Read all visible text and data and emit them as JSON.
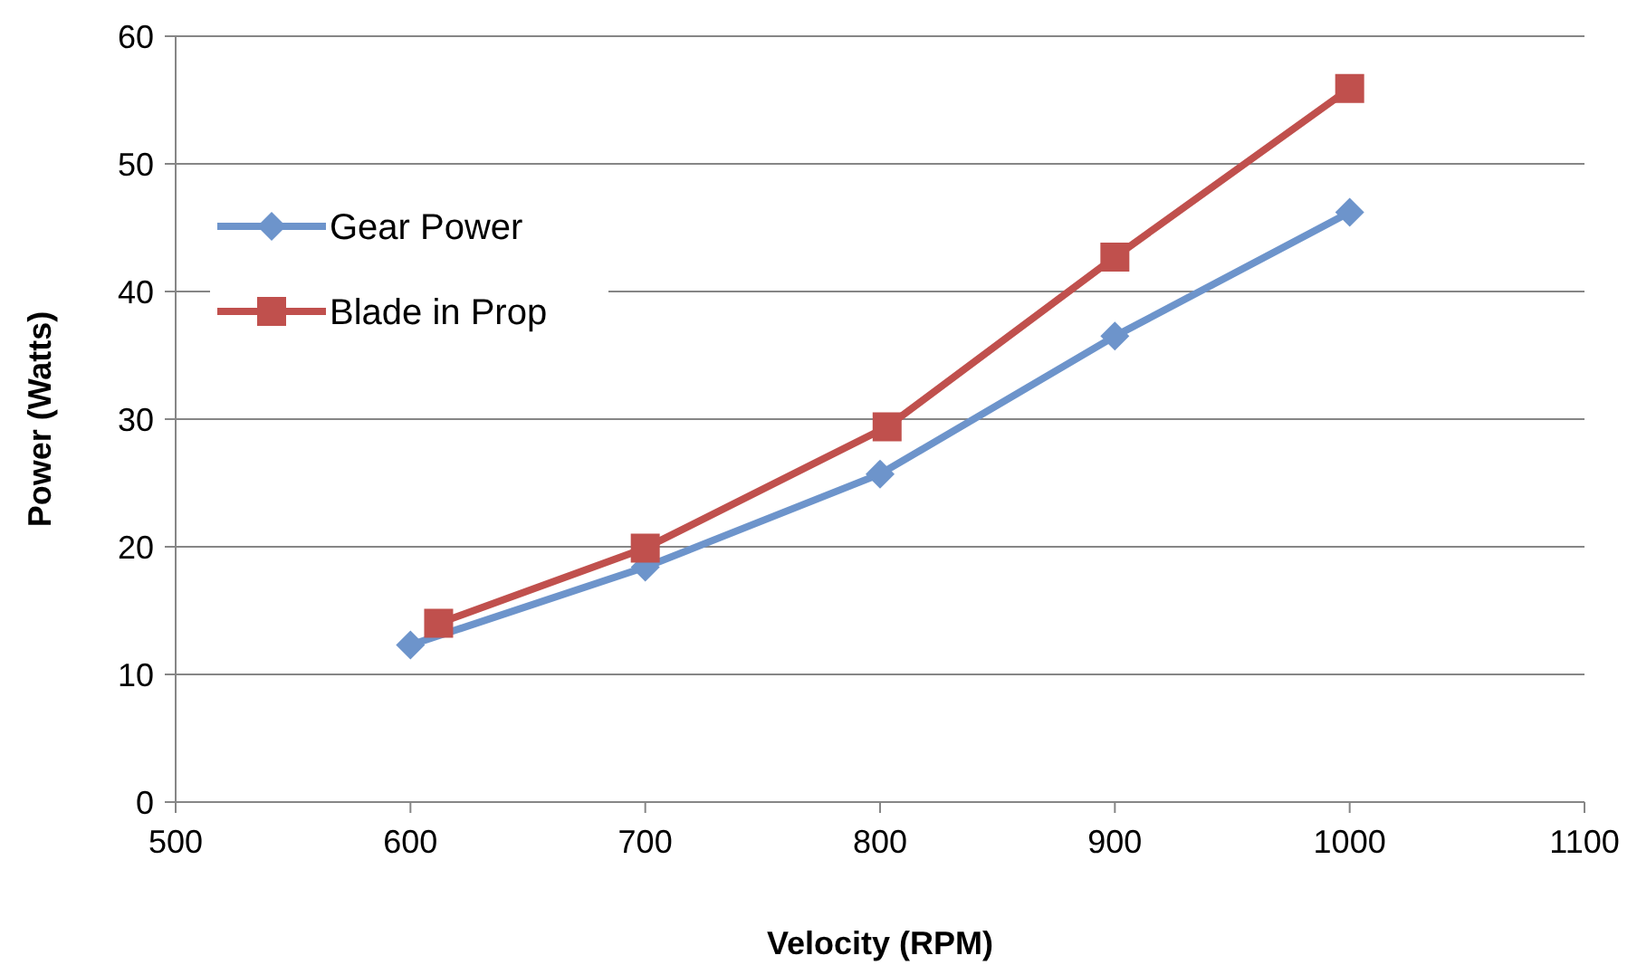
{
  "chart_data": {
    "type": "line",
    "xlabel": "Velocity (RPM)",
    "ylabel": "Power (Watts)",
    "xlim": [
      500,
      1100
    ],
    "xticks": [
      500,
      600,
      700,
      800,
      900,
      1000,
      1100
    ],
    "ylim": [
      0,
      60
    ],
    "yticks": [
      0,
      10,
      20,
      30,
      40,
      50,
      60
    ],
    "grid": "y",
    "legend": "left",
    "series": [
      {
        "name": "Gear Power",
        "color": "#6d94cb",
        "marker": "diamond",
        "x": [
          600,
          700,
          800,
          900,
          1000
        ],
        "values": [
          12.3,
          18.4,
          25.7,
          36.5,
          46.2
        ]
      },
      {
        "name": "Blade in Prop",
        "color": "#c0504d",
        "marker": "square",
        "x": [
          612,
          700,
          803,
          900,
          1000
        ],
        "values": [
          14.0,
          19.9,
          29.4,
          42.7,
          55.9
        ]
      }
    ]
  }
}
